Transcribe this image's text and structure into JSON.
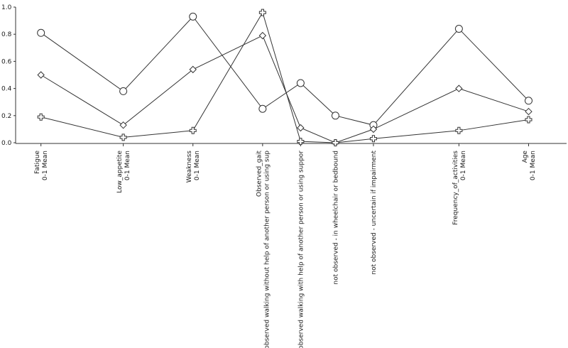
{
  "chart_data": {
    "type": "line",
    "title": "",
    "xlabel": "",
    "ylabel": "",
    "ylim": [
      0,
      1.0
    ],
    "grid": false,
    "legend": "none",
    "yticks": [
      "0.0",
      "0.2",
      "0.4",
      "0.6",
      "0.8",
      "1.0"
    ],
    "categories": [
      [
        "Fatigue",
        "0-1 Mean"
      ],
      [
        "Low_appetite",
        "0-1 Mean"
      ],
      [
        "Weakness",
        "0-1 Mean"
      ],
      [
        "Observed_gait",
        "observed walking without help of another person or using sup"
      ],
      [
        "observed walking with help of another person or using suppor"
      ],
      [
        "not observed - in wheelchair or bedbound"
      ],
      [
        "not observed - uncertain if impairment"
      ],
      [
        "Frequency_of_activities",
        "0-1 Mean"
      ],
      [
        "Age",
        "0-1 Mean"
      ]
    ],
    "category_pos": [
      1.0,
      2.3,
      3.4,
      4.5,
      5.1,
      5.65,
      6.25,
      7.6,
      8.7
    ],
    "series": [
      {
        "marker": "circle",
        "values": [
          0.81,
          0.38,
          0.93,
          0.25,
          0.44,
          0.2,
          0.13,
          0.84,
          0.31
        ]
      },
      {
        "marker": "diamond",
        "values": [
          0.5,
          0.13,
          0.54,
          0.79,
          0.11,
          0.0,
          0.1,
          0.4,
          0.23
        ]
      },
      {
        "marker": "cross",
        "values": [
          0.19,
          0.04,
          0.09,
          0.96,
          0.01,
          0.0,
          0.03,
          0.09,
          0.17
        ]
      }
    ],
    "line_color": "#333333",
    "axis_color": "#333333"
  }
}
